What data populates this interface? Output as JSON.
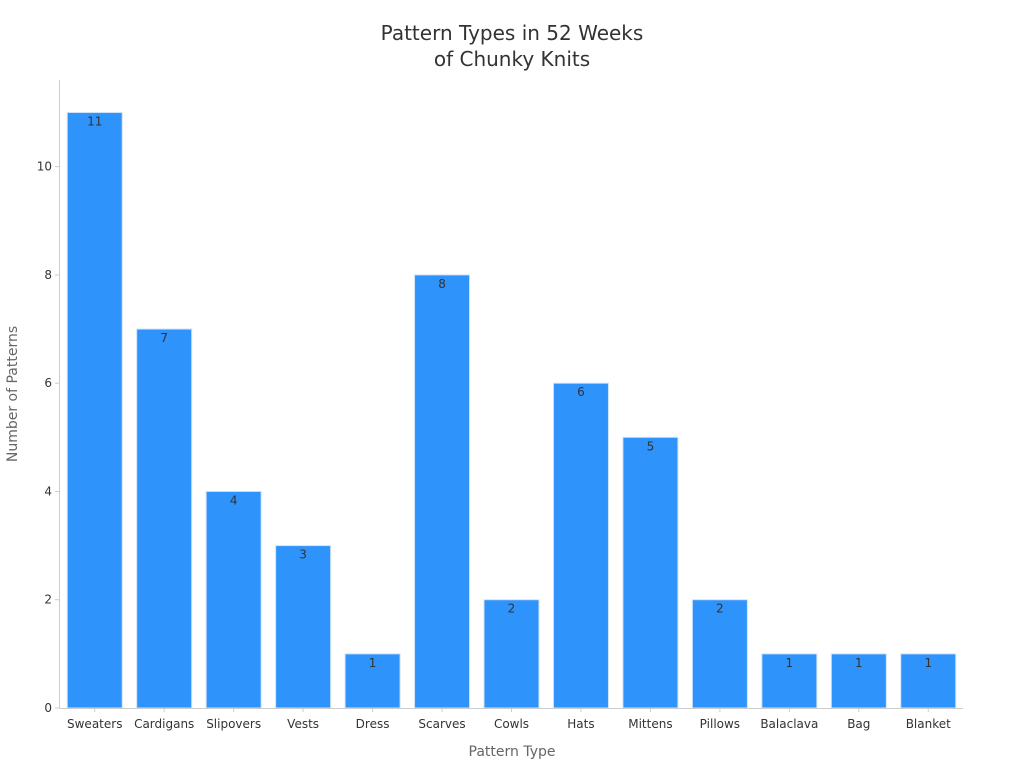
{
  "chart_data": {
    "type": "bar",
    "title_line1": "Pattern Types in 52 Weeks",
    "title_line2": "of Chunky Knits",
    "xlabel": "Pattern Type",
    "ylabel": "Number of Patterns",
    "categories": [
      "Sweaters",
      "Cardigans",
      "Slipovers",
      "Vests",
      "Dress",
      "Scarves",
      "Cowls",
      "Hats",
      "Mittens",
      "Pillows",
      "Balaclava",
      "Bag",
      "Blanket"
    ],
    "values": [
      11,
      7,
      4,
      3,
      1,
      8,
      2,
      6,
      5,
      2,
      1,
      1,
      1
    ],
    "ylim": [
      0,
      11.6
    ],
    "yticks": [
      0,
      2,
      4,
      6,
      8,
      10
    ],
    "grid": false,
    "bar_color": "#2e93fa",
    "bar_edge_color": "#cfe3fb",
    "text_color": "#333333",
    "axis_label_color": "#666666",
    "axis_line_color": "#cccccc"
  }
}
